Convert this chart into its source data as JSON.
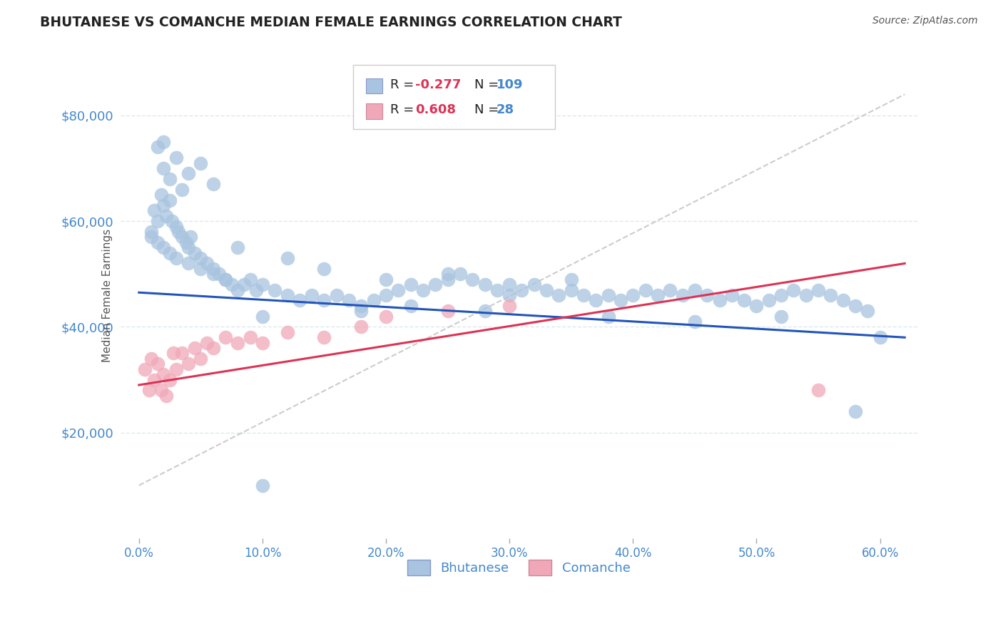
{
  "title": "BHUTANESE VS COMANCHE MEDIAN FEMALE EARNINGS CORRELATION CHART",
  "source": "Source: ZipAtlas.com",
  "ylabel": "Median Female Earnings",
  "x_tick_labels": [
    "0.0%",
    "10.0%",
    "20.0%",
    "30.0%",
    "40.0%",
    "50.0%",
    "60.0%"
  ],
  "x_tick_values": [
    0.0,
    10.0,
    20.0,
    30.0,
    40.0,
    50.0,
    60.0
  ],
  "y_tick_labels": [
    "$20,000",
    "$40,000",
    "$60,000",
    "$80,000"
  ],
  "y_tick_values": [
    20000,
    40000,
    60000,
    80000
  ],
  "ylim": [
    0,
    92000
  ],
  "xlim": [
    -1.5,
    63.0
  ],
  "legend_R1": "-0.277",
  "legend_N1": "109",
  "legend_R2": "0.608",
  "legend_N2": "28",
  "legend_label1": "Bhutanese",
  "legend_label2": "Comanche",
  "color_blue": "#a8c4e0",
  "color_pink": "#f0a8b8",
  "trendline_blue": "#2255bb",
  "trendline_pink": "#dd3355",
  "refline_color": "#cccccc",
  "title_color": "#222222",
  "axis_label_color": "#4488cc",
  "background_color": "#ffffff",
  "grid_color": "#dde8f0",
  "blue_scatter_x": [
    1.0,
    1.2,
    1.5,
    1.8,
    2.0,
    2.2,
    2.5,
    2.7,
    3.0,
    3.2,
    3.5,
    3.8,
    4.0,
    4.2,
    4.5,
    5.0,
    5.5,
    6.0,
    6.5,
    7.0,
    7.5,
    8.0,
    8.5,
    9.0,
    9.5,
    10.0,
    11.0,
    12.0,
    13.0,
    14.0,
    15.0,
    16.0,
    17.0,
    18.0,
    19.0,
    20.0,
    21.0,
    22.0,
    23.0,
    24.0,
    25.0,
    26.0,
    27.0,
    28.0,
    29.0,
    30.0,
    31.0,
    32.0,
    33.0,
    34.0,
    35.0,
    36.0,
    37.0,
    38.0,
    39.0,
    40.0,
    41.0,
    42.0,
    43.0,
    44.0,
    45.0,
    46.0,
    47.0,
    48.0,
    49.0,
    50.0,
    51.0,
    52.0,
    53.0,
    54.0,
    55.0,
    56.0,
    57.0,
    58.0,
    59.0,
    60.0,
    2.0,
    2.5,
    3.0,
    3.5,
    4.0,
    5.0,
    1.5,
    2.0,
    6.0,
    8.0,
    12.0,
    15.0,
    20.0,
    25.0,
    30.0,
    35.0,
    10.0,
    18.0,
    22.0,
    28.0,
    38.0,
    45.0,
    52.0,
    1.0,
    1.5,
    2.0,
    2.5,
    3.0,
    4.0,
    5.0,
    6.0,
    7.0,
    58.0,
    10.0
  ],
  "blue_scatter_y": [
    58000,
    62000,
    60000,
    65000,
    63000,
    61000,
    64000,
    60000,
    59000,
    58000,
    57000,
    56000,
    55000,
    57000,
    54000,
    53000,
    52000,
    51000,
    50000,
    49000,
    48000,
    47000,
    48000,
    49000,
    47000,
    48000,
    47000,
    46000,
    45000,
    46000,
    45000,
    46000,
    45000,
    44000,
    45000,
    46000,
    47000,
    48000,
    47000,
    48000,
    49000,
    50000,
    49000,
    48000,
    47000,
    46000,
    47000,
    48000,
    47000,
    46000,
    47000,
    46000,
    45000,
    46000,
    45000,
    46000,
    47000,
    46000,
    47000,
    46000,
    47000,
    46000,
    45000,
    46000,
    45000,
    44000,
    45000,
    46000,
    47000,
    46000,
    47000,
    46000,
    45000,
    44000,
    43000,
    38000,
    70000,
    68000,
    72000,
    66000,
    69000,
    71000,
    74000,
    75000,
    67000,
    55000,
    53000,
    51000,
    49000,
    50000,
    48000,
    49000,
    42000,
    43000,
    44000,
    43000,
    42000,
    41000,
    42000,
    57000,
    56000,
    55000,
    54000,
    53000,
    52000,
    51000,
    50000,
    49000,
    24000,
    10000
  ],
  "pink_scatter_x": [
    0.5,
    0.8,
    1.0,
    1.2,
    1.5,
    1.8,
    2.0,
    2.2,
    2.5,
    2.8,
    3.0,
    3.5,
    4.0,
    4.5,
    5.0,
    5.5,
    6.0,
    7.0,
    8.0,
    9.0,
    10.0,
    12.0,
    15.0,
    18.0,
    20.0,
    25.0,
    30.0,
    55.0
  ],
  "pink_scatter_y": [
    32000,
    28000,
    34000,
    30000,
    33000,
    28000,
    31000,
    27000,
    30000,
    35000,
    32000,
    35000,
    33000,
    36000,
    34000,
    37000,
    36000,
    38000,
    37000,
    38000,
    37000,
    39000,
    38000,
    40000,
    42000,
    43000,
    44000,
    28000
  ],
  "blue_trend_x": [
    0.0,
    62.0
  ],
  "blue_trend_y": [
    46500,
    38000
  ],
  "pink_trend_x": [
    0.0,
    62.0
  ],
  "pink_trend_y": [
    29000,
    52000
  ],
  "ref_line_x": [
    0.0,
    62.0
  ],
  "ref_line_y": [
    10000,
    84000
  ]
}
